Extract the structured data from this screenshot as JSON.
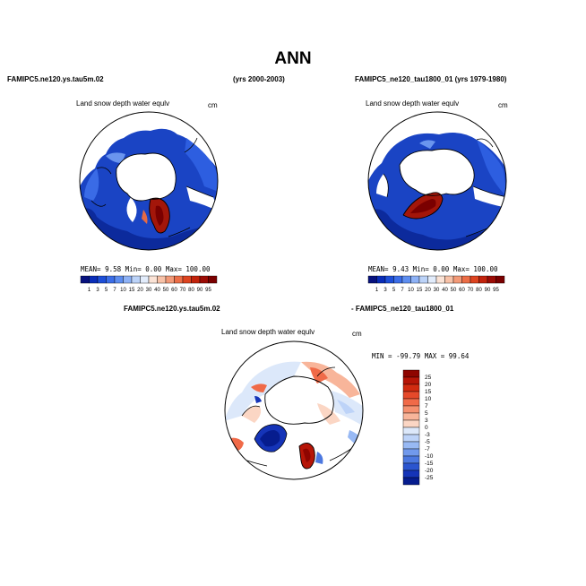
{
  "page": {
    "title": "ANN"
  },
  "left_panel": {
    "case_name": "FAMIPC5.ne120.ys.tau5m.02",
    "years": "(yrs 2000-2003)",
    "field": "Land snow depth water equlv",
    "units": "cm",
    "stats": {
      "mean_label": "MEAN=",
      "mean": "9.58",
      "min_label": "Min=",
      "min": "0.00",
      "max_label": "Max=",
      "max": "100.00"
    }
  },
  "right_panel": {
    "case_name": "FAMIPC5_ne120_tau1800_01 (yrs 1979-1980)",
    "field": "Land snow depth water equlv",
    "units": "cm",
    "stats": {
      "mean_label": "MEAN=",
      "mean": "9.43",
      "min_label": "Min=",
      "min": "0.00",
      "max_label": "Max=",
      "max": "100.00"
    }
  },
  "diff_panel": {
    "case_a": "FAMIPC5.ne120.ys.tau5m.02",
    "case_b": "- FAMIPC5_ne120_tau1800_01",
    "field": "Land snow depth water equlv",
    "units": "cm",
    "stats": {
      "min_label": "MIN =",
      "min": "-99.79",
      "max_label": "MAX =",
      "max": "99.64"
    }
  },
  "abs_colorbar": {
    "labels": [
      "1",
      "3",
      "5",
      "7",
      "10",
      "15",
      "20",
      "30",
      "40",
      "50",
      "60",
      "70",
      "80",
      "90",
      "95"
    ],
    "colors": [
      "#08127e",
      "#0a2db8",
      "#1e4fd8",
      "#3c6ee8",
      "#5e8ef0",
      "#8eb2f6",
      "#bcd3f8",
      "#e2ecfb",
      "#fbe3d6",
      "#f8c2a8",
      "#f39a78",
      "#ec6e47",
      "#dd4420",
      "#c2230c",
      "#9c0c05",
      "#7a0000"
    ]
  },
  "diff_colorbar": {
    "labels": [
      "25",
      "20",
      "15",
      "10",
      "7",
      "5",
      "3",
      "0",
      "-3",
      "-5",
      "-7",
      "-10",
      "-15",
      "-20",
      "-25"
    ],
    "colors": [
      "#8e0500",
      "#b61507",
      "#d12b10",
      "#e5492a",
      "#f06a48",
      "#f5906f",
      "#f8b59a",
      "#fbd6c4",
      "#dce8fa",
      "#bdd3f8",
      "#98b9f4",
      "#7199ec",
      "#4c78e0",
      "#2b55cf",
      "#1534b8",
      "#061c8e"
    ]
  }
}
